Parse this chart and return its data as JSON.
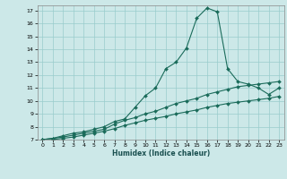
{
  "xlabel": "Humidex (Indice chaleur)",
  "background_color": "#cce8e8",
  "grid_color": "#99cccc",
  "line_color": "#1a6b5a",
  "xlim": [
    -0.5,
    23.5
  ],
  "ylim": [
    7,
    17.4
  ],
  "xticks": [
    0,
    1,
    2,
    3,
    4,
    5,
    6,
    7,
    8,
    9,
    10,
    11,
    12,
    13,
    14,
    15,
    16,
    17,
    18,
    19,
    20,
    21,
    22,
    23
  ],
  "yticks": [
    7,
    8,
    9,
    10,
    11,
    12,
    13,
    14,
    15,
    16,
    17
  ],
  "line1_x": [
    0,
    1,
    2,
    3,
    4,
    5,
    6,
    7,
    8,
    9,
    10,
    11,
    12,
    13,
    14,
    15,
    16,
    17,
    18,
    19,
    20,
    21,
    22,
    23
  ],
  "line1_y": [
    7.0,
    7.1,
    7.3,
    7.5,
    7.6,
    7.8,
    8.0,
    8.4,
    8.6,
    9.5,
    10.4,
    11.0,
    12.5,
    13.0,
    14.1,
    16.4,
    17.2,
    16.9,
    12.5,
    11.5,
    11.3,
    11.0,
    10.5,
    11.0
  ],
  "line2_x": [
    0,
    1,
    2,
    3,
    4,
    5,
    6,
    7,
    8,
    9,
    10,
    11,
    12,
    13,
    14,
    15,
    16,
    17,
    18,
    19,
    20,
    21,
    22,
    23
  ],
  "line2_y": [
    7.0,
    7.1,
    7.2,
    7.35,
    7.5,
    7.65,
    7.8,
    8.2,
    8.5,
    8.7,
    9.0,
    9.2,
    9.5,
    9.8,
    10.0,
    10.2,
    10.5,
    10.7,
    10.9,
    11.1,
    11.2,
    11.3,
    11.4,
    11.5
  ],
  "line3_x": [
    0,
    1,
    2,
    3,
    4,
    5,
    6,
    7,
    8,
    9,
    10,
    11,
    12,
    13,
    14,
    15,
    16,
    17,
    18,
    19,
    20,
    21,
    22,
    23
  ],
  "line3_y": [
    7.0,
    7.0,
    7.1,
    7.2,
    7.35,
    7.5,
    7.65,
    7.85,
    8.1,
    8.3,
    8.5,
    8.65,
    8.8,
    9.0,
    9.15,
    9.3,
    9.5,
    9.65,
    9.8,
    9.9,
    10.0,
    10.1,
    10.2,
    10.35
  ]
}
